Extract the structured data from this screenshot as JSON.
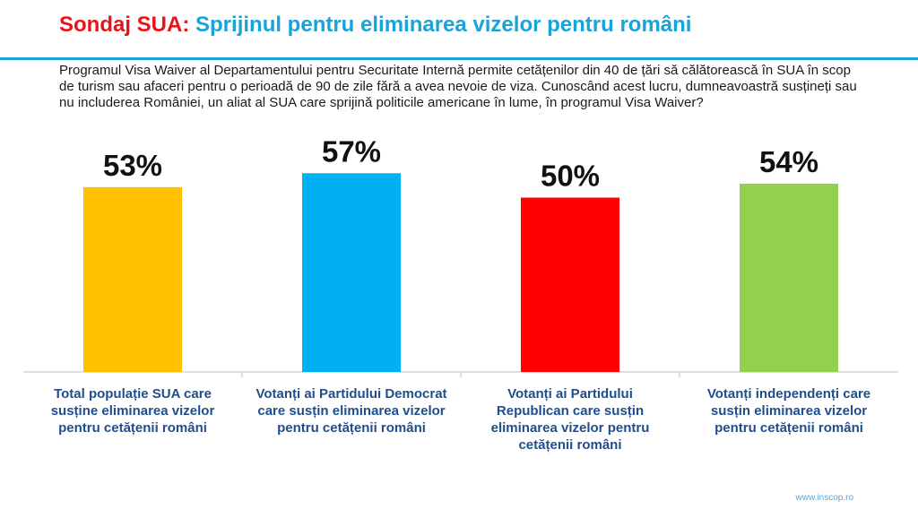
{
  "header": {
    "title_prefix": "Sondaj SUA:",
    "title_main": "Sprijinul pentru eliminarea vizelor pentru români"
  },
  "question": "Programul Visa Waiver al Departamentului pentru Securitate Internă permite cetățenilor din 40 de țări să călătorească în SUA în scop de turism sau afaceri pentru o perioadă de 90 de zile fără a avea nevoie de viza. Cunoscând acest lucru, dumneavoastră susțineți sau nu includerea României, un aliat al SUA care sprijină politicile americane în lume, în programul Visa Waiver?",
  "footer": {
    "website": "www.inscop.ro"
  },
  "chart_data": {
    "type": "bar",
    "categories": [
      [
        "Total populație SUA care",
        "susține eliminarea vizelor",
        "pentru cetățenii români"
      ],
      [
        "Votanți ai Partidului Democrat",
        "care susțin eliminarea vizelor",
        "pentru cetățenii români"
      ],
      [
        "Votanți ai Partidului",
        "Republican care susțin",
        "eliminarea vizelor pentru",
        "cetățenii români"
      ],
      [
        "Votanți independenți care",
        "susțin eliminarea vizelor",
        "pentru cetățenii români"
      ]
    ],
    "values": [
      53,
      57,
      50,
      54
    ],
    "value_labels": [
      "53%",
      "57%",
      "50%",
      "54%"
    ],
    "colors": [
      "#ffc000",
      "#00b0f0",
      "#ff0000",
      "#92d050"
    ],
    "ylim": [
      0,
      100
    ],
    "grid": false,
    "legend": "none"
  }
}
